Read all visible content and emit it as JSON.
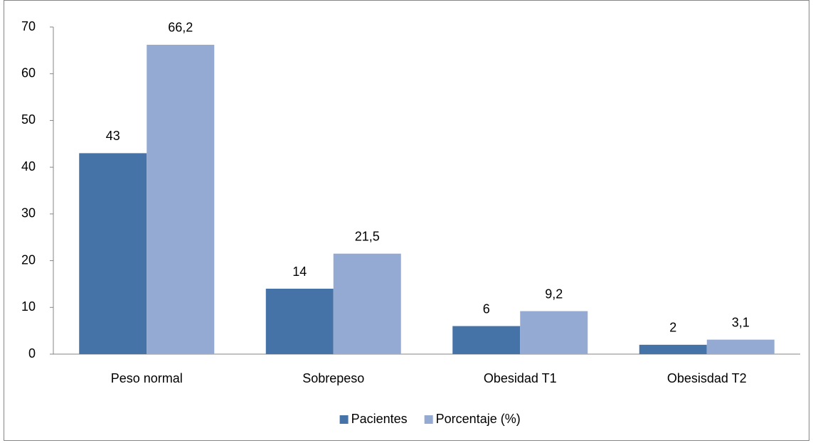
{
  "chart_data": {
    "type": "bar",
    "categories": [
      "Peso normal",
      "Sobrepeso",
      "Obesidad T1",
      "Obesisdad T2"
    ],
    "series": [
      {
        "name": "Pacientes",
        "color": "#4572a7",
        "values": [
          43,
          14,
          6,
          2
        ]
      },
      {
        "name": "Porcentaje (%)",
        "color": "#95aad2",
        "values": [
          66.2,
          21.5,
          9.2,
          3.1
        ],
        "value_labels": [
          "66,2",
          "21,5",
          "9,2",
          "3,1"
        ]
      }
    ],
    "ylim": [
      0,
      70
    ],
    "yticks": [
      0,
      10,
      20,
      30,
      40,
      50,
      60,
      70
    ],
    "grid": false,
    "legend": "bottom"
  }
}
